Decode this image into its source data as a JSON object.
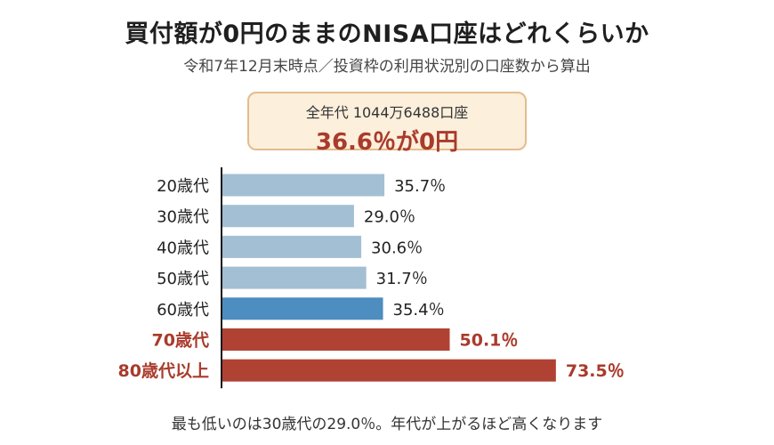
{
  "title": "買付額が0円のままのNISA口座はどれくらいか",
  "subtitle": "令和7年12月末時点／投資枠の利用状況別の口座数から算出",
  "summary": {
    "line1": "全年代 1044万6488口座",
    "line2": "36.6％が0円"
  },
  "footnote": "最も低いのは30歳代の29.0％。年代が上がるほど高くなります",
  "colors": {
    "light_blue": "#a3bfd3",
    "mid_blue": "#4e8dbf",
    "red": "#b04234",
    "label_dark": "#222222",
    "label_red": "#a93b2b"
  },
  "chart_data": {
    "type": "bar",
    "orientation": "horizontal",
    "categories": [
      "20歳代",
      "30歳代",
      "40歳代",
      "50歳代",
      "60歳代",
      "70歳代",
      "80歳代以上"
    ],
    "values": [
      35.7,
      29.0,
      30.6,
      31.7,
      35.4,
      50.1,
      73.5
    ],
    "value_labels": [
      "35.7％",
      "29.0％",
      "30.6％",
      "31.7％",
      "35.4％",
      "50.1％",
      "73.5％"
    ],
    "bar_colors": [
      "light_blue",
      "light_blue",
      "light_blue",
      "light_blue",
      "mid_blue",
      "red",
      "red"
    ],
    "highlight": [
      false,
      false,
      false,
      false,
      false,
      true,
      true
    ],
    "unit": "％",
    "xlim": [
      0,
      80
    ],
    "grid": false
  }
}
